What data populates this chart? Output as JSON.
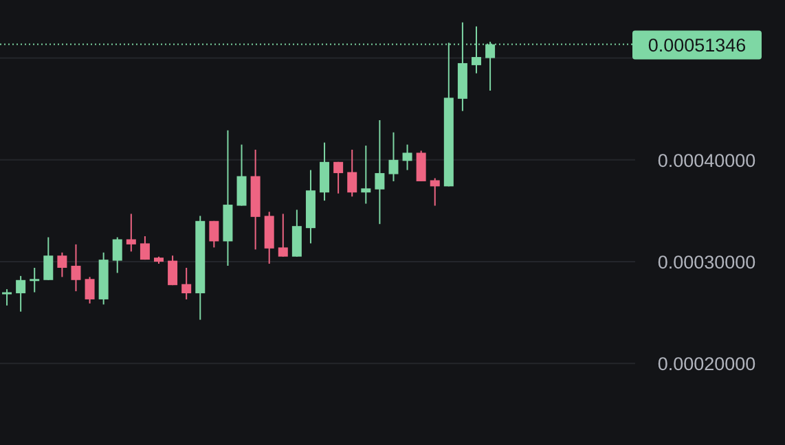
{
  "chart_data": {
    "type": "candlestick",
    "categories": [
      null,
      null,
      null,
      null,
      null,
      null,
      null,
      null,
      null,
      null,
      null,
      null,
      null,
      null,
      null,
      null,
      null,
      null,
      null,
      null,
      null,
      null,
      null,
      null,
      null,
      null,
      null,
      null,
      null,
      null,
      null,
      null,
      null,
      null,
      null,
      null,
      null,
      null,
      null,
      null,
      null,
      null,
      null,
      null,
      null,
      null
    ],
    "ylim": [
      0.00012,
      0.000557
    ],
    "yticks": [
      {
        "value": 0.0002,
        "label": "0.00020000"
      },
      {
        "value": 0.0003,
        "label": "0.00030000"
      },
      {
        "value": 0.0004,
        "label": "0.00040000"
      },
      {
        "value": 0.0005,
        "label": null
      }
    ],
    "tick_labels": "y",
    "grid": "y",
    "ohlc": [
      [
        0.000268,
        0.000273,
        0.000257,
        0.00027
      ],
      [
        0.000269,
        0.000286,
        0.000251,
        0.000282
      ],
      [
        0.000281,
        0.000294,
        0.00027,
        0.000283
      ],
      [
        0.000282,
        0.000324,
        0.000282,
        0.000306
      ],
      [
        0.000306,
        0.000309,
        0.000285,
        0.000294
      ],
      [
        0.000296,
        0.000317,
        0.000271,
        0.000282
      ],
      [
        0.000283,
        0.000285,
        0.000259,
        0.000263
      ],
      [
        0.000263,
        0.000309,
        0.000258,
        0.000302
      ],
      [
        0.000301,
        0.000324,
        0.000289,
        0.000322
      ],
      [
        0.000322,
        0.000347,
        0.00031,
        0.000317
      ],
      [
        0.000318,
        0.000325,
        0.000302,
        0.000302
      ],
      [
        0.000304,
        0.000305,
        0.000298,
        0.0003
      ],
      [
        0.000301,
        0.000306,
        0.000277,
        0.000277
      ],
      [
        0.000278,
        0.000294,
        0.000263,
        0.000269
      ],
      [
        0.000269,
        0.000345,
        0.000243,
        0.00034
      ],
      [
        0.00034,
        0.00034,
        0.000314,
        0.00032
      ],
      [
        0.00032,
        0.000429,
        0.000296,
        0.000356
      ],
      [
        0.000355,
        0.000415,
        0.000355,
        0.000384
      ],
      [
        0.000384,
        0.00041,
        0.000312,
        0.000344
      ],
      [
        0.000345,
        0.000349,
        0.000298,
        0.000313
      ],
      [
        0.000314,
        0.000347,
        0.000305,
        0.000305
      ],
      [
        0.000305,
        0.000351,
        0.000305,
        0.000335
      ],
      [
        0.000333,
        0.00039,
        0.000318,
        0.00037
      ],
      [
        0.000368,
        0.000417,
        0.00036,
        0.000398
      ],
      [
        0.000398,
        0.000398,
        0.000367,
        0.000387
      ],
      [
        0.000388,
        0.00041,
        0.000364,
        0.000368
      ],
      [
        0.000368,
        0.000414,
        0.000357,
        0.000372
      ],
      [
        0.000371,
        0.000439,
        0.000337,
        0.000387
      ],
      [
        0.000386,
        0.000427,
        0.000379,
        0.0004
      ],
      [
        0.000399,
        0.000415,
        0.00039,
        0.000407
      ],
      [
        0.000407,
        0.000409,
        0.000379,
        0.000379
      ],
      [
        0.00038,
        0.000382,
        0.000355,
        0.000374
      ],
      [
        0.000374,
        0.000515,
        0.000374,
        0.000461
      ],
      [
        0.00046,
        0.000535,
        0.000448,
        0.000495
      ],
      [
        0.000493,
        0.000531,
        0.000485,
        0.000501
      ],
      [
        0.0005,
        0.000516,
        0.000468,
        0.00051346
      ],
      null,
      null,
      null,
      null,
      null,
      null,
      null,
      null,
      null,
      null
    ],
    "colors": [
      "#7ed7a4",
      "#7ed7a4",
      "#7ed7a4",
      "#7ed7a4",
      "#ee6482",
      "#ee6482",
      "#ee6482",
      "#7ed7a4",
      "#7ed7a4",
      "#ee6482",
      "#ee6482",
      "#ee6482",
      "#ee6482",
      "#ee6482",
      "#7ed7a4",
      "#ee6482",
      "#7ed7a4",
      "#7ed7a4",
      "#ee6482",
      "#ee6482",
      "#ee6482",
      "#7ed7a4",
      "#7ed7a4",
      "#7ed7a4",
      "#ee6482",
      "#ee6482",
      "#7ed7a4",
      "#7ed7a4",
      "#7ed7a4",
      "#7ed7a4",
      "#ee6482",
      "#ee6482",
      "#7ed7a4",
      "#7ed7a4",
      "#7ed7a4",
      "#7ed7a4",
      null,
      null,
      null,
      null,
      null,
      null,
      null,
      null,
      null,
      null
    ],
    "ref_lines": [
      {
        "axis": "y",
        "value": 0.00051346,
        "label": "0.00051346",
        "color": "#7ed7a4",
        "line_style": "dotted"
      }
    ]
  }
}
